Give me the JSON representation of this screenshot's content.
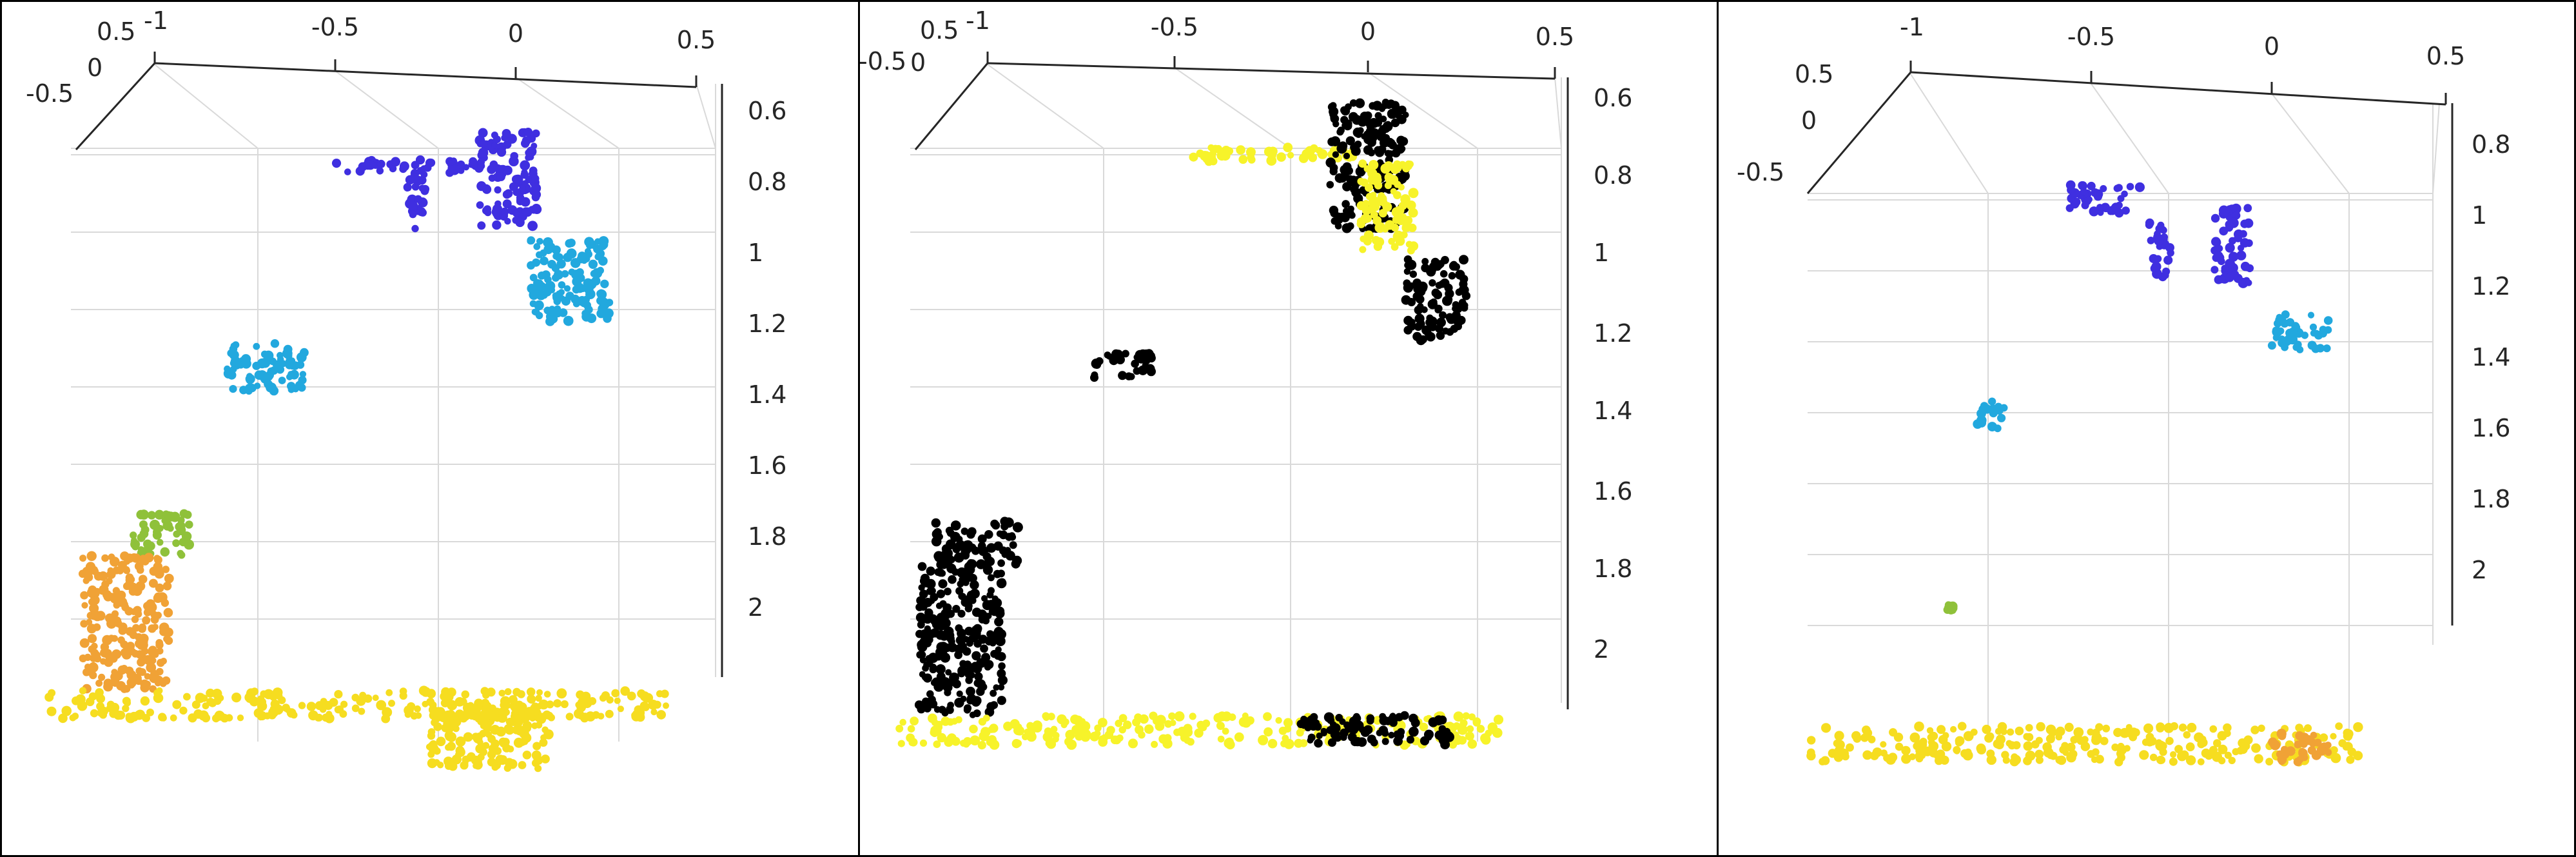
{
  "colors": {
    "top": "#3f2fe0",
    "mid": "#22a8de",
    "green": "#8fc13a",
    "orange": "#f0a236",
    "bottom": "#f6dd20",
    "black": "#000000",
    "yellow": "#f7f32a"
  },
  "chart_data": [
    {
      "type": "scatter",
      "title": "",
      "xlabel": "",
      "ylabel": "",
      "zlabel": "",
      "x_ticks": [
        "-1",
        "-0.5",
        "0",
        "0.5"
      ],
      "y_ticks": [
        "0.5",
        "0",
        "-0.5"
      ],
      "z_ticks": [
        "0.6",
        "0.8",
        "1",
        "1.2",
        "1.4",
        "1.6",
        "1.8",
        "2"
      ],
      "color_mode": "depth-gradient",
      "clusters": [
        {
          "x": [
            -0.5,
            -0.1
          ],
          "z": [
            0.72,
            0.76
          ],
          "color": "top"
        },
        {
          "x": [
            -0.3,
            -0.24
          ],
          "z": [
            0.76,
            0.92
          ],
          "color": "top"
        },
        {
          "x": [
            -0.1,
            0.06
          ],
          "z": [
            0.64,
            0.92
          ],
          "color": "top"
        },
        {
          "x": [
            0.04,
            0.26
          ],
          "z": [
            0.95,
            1.18
          ],
          "color": "mid"
        },
        {
          "x": [
            -0.8,
            -0.58
          ],
          "z": [
            1.24,
            1.38
          ],
          "color": "mid"
        },
        {
          "x": [
            -1.06,
            -0.9
          ],
          "z": [
            1.72,
            1.84
          ],
          "color": "green"
        },
        {
          "x": [
            -1.2,
            -0.96
          ],
          "z": [
            1.84,
            2.22
          ],
          "color": "orange"
        },
        {
          "x": [
            -1.3,
            0.42
          ],
          "z": [
            2.22,
            2.3
          ],
          "color": "bottom"
        },
        {
          "x": [
            -0.24,
            0.1
          ],
          "z": [
            2.26,
            2.44
          ],
          "color": "bottom"
        }
      ]
    },
    {
      "type": "scatter",
      "title": "",
      "xlabel": "",
      "ylabel": "",
      "zlabel": "",
      "x_ticks": [
        "-1",
        "-0.5",
        "0",
        "0.5"
      ],
      "y_ticks": [
        "0.5",
        "0",
        "-0.5"
      ],
      "z_ticks": [
        "0.6",
        "0.8",
        "1",
        "1.2",
        "1.4",
        "1.6",
        "1.8",
        "2"
      ],
      "color_mode": "binary",
      "clusters": [
        {
          "x": [
            -0.46,
            -0.02
          ],
          "z": [
            0.7,
            0.74
          ],
          "color": "yellow"
        },
        {
          "x": [
            -0.1,
            0.1
          ],
          "z": [
            0.58,
            0.92
          ],
          "color": "black"
        },
        {
          "x": [
            -0.02,
            0.12
          ],
          "z": [
            0.74,
            0.98
          ],
          "color": "yellow"
        },
        {
          "x": [
            0.1,
            0.26
          ],
          "z": [
            1.0,
            1.22
          ],
          "color": "black"
        },
        {
          "x": [
            -0.72,
            -0.56
          ],
          "z": [
            1.25,
            1.32
          ],
          "color": "black"
        },
        {
          "x": [
            -1.14,
            -0.92
          ],
          "z": [
            1.7,
            1.82
          ],
          "color": "black"
        },
        {
          "x": [
            -1.18,
            -0.96
          ],
          "z": [
            1.82,
            2.22
          ],
          "color": "black"
        },
        {
          "x": [
            -1.24,
            0.36
          ],
          "z": [
            2.22,
            2.3
          ],
          "color": "yellow"
        },
        {
          "x": [
            -0.18,
            0.22
          ],
          "z": [
            2.22,
            2.3
          ],
          "color": "black"
        }
      ]
    },
    {
      "type": "scatter",
      "title": "",
      "xlabel": "",
      "ylabel": "",
      "zlabel": "",
      "x_ticks": [
        "-1",
        "-0.5",
        "0",
        "0.5"
      ],
      "y_ticks": [
        "0.5",
        "0",
        "-0.5"
      ],
      "z_ticks": [
        "0.8",
        "1",
        "1.2",
        "1.4",
        "1.6",
        "1.8",
        "2"
      ],
      "color_mode": "depth-gradient",
      "clusters": [
        {
          "x": [
            -0.56,
            -0.36
          ],
          "z": [
            0.7,
            0.78
          ],
          "color": "top"
        },
        {
          "x": [
            -0.34,
            -0.28
          ],
          "z": [
            0.8,
            0.98
          ],
          "color": "top"
        },
        {
          "x": [
            -0.16,
            -0.06
          ],
          "z": [
            0.76,
            0.98
          ],
          "color": "top"
        },
        {
          "x": [
            0.0,
            0.16
          ],
          "z": [
            1.06,
            1.16
          ],
          "color": "mid"
        },
        {
          "x": [
            -0.82,
            -0.74
          ],
          "z": [
            1.3,
            1.38
          ],
          "color": "mid"
        },
        {
          "x": [
            -0.9,
            -0.88
          ],
          "z": [
            1.86,
            1.88
          ],
          "color": "green"
        },
        {
          "x": [
            -1.28,
            0.24
          ],
          "z": [
            2.2,
            2.3
          ],
          "color": "bottom"
        },
        {
          "x": [
            0.0,
            0.16
          ],
          "z": [
            2.22,
            2.3
          ],
          "color": "orange"
        }
      ]
    }
  ]
}
